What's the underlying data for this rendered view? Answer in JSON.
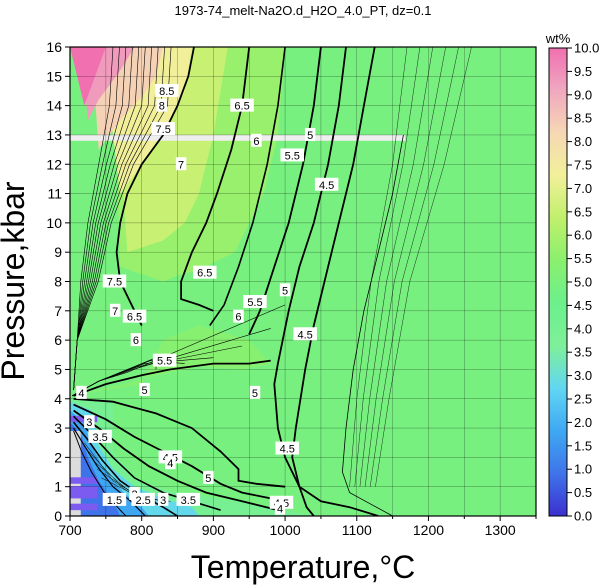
{
  "chart_data": {
    "type": "heatmap",
    "title": "1973-74_melt-Na2O.d_H2O_4.0_PT, dz=0.1",
    "xlabel": "Temperature,°C",
    "ylabel": "Pressure,kbar",
    "xlim": [
      700,
      1350
    ],
    "ylim": [
      0,
      16
    ],
    "xticks": [
      700,
      800,
      900,
      1000,
      1100,
      1200,
      1300
    ],
    "yticks": [
      0,
      1,
      2,
      3,
      4,
      5,
      6,
      7,
      8,
      9,
      10,
      11,
      12,
      13,
      14,
      15,
      16
    ],
    "grid": true,
    "colorbar": {
      "title": "wt%",
      "min": 0.0,
      "max": 10.0,
      "ticks": [
        "0.0",
        "0.5",
        "1.0",
        "1.5",
        "2.0",
        "2.5",
        "3.0",
        "3.5",
        "4.0",
        "4.5",
        "5.0",
        "5.5",
        "6.0",
        "6.5",
        "7.0",
        "7.5",
        "8.0",
        "8.5",
        "9.0",
        "9.5",
        "10.0"
      ],
      "colors": [
        "#3c2fd0",
        "#3f74ea",
        "#3fa8f2",
        "#62d6f2",
        "#7ef09a",
        "#6cf08c",
        "#8af06e",
        "#c0f06c",
        "#f2f09a",
        "#f6d8b4",
        "#f0a8c0",
        "#f070b0"
      ]
    },
    "background_value": 4.9,
    "contour_labels": [
      {
        "text": "8.5",
        "x": 835,
        "y": 14.5
      },
      {
        "text": "8",
        "x": 828,
        "y": 14.0
      },
      {
        "text": "7.5",
        "x": 830,
        "y": 13.2
      },
      {
        "text": "7",
        "x": 855,
        "y": 12.0
      },
      {
        "text": "6.5",
        "x": 940,
        "y": 14.0
      },
      {
        "text": "6",
        "x": 960,
        "y": 12.8
      },
      {
        "text": "5.5",
        "x": 1010,
        "y": 12.3
      },
      {
        "text": "5",
        "x": 1035,
        "y": 13.0
      },
      {
        "text": "4.5",
        "x": 1058,
        "y": 11.3
      },
      {
        "text": "6.5",
        "x": 888,
        "y": 8.3
      },
      {
        "text": "7.5",
        "x": 762,
        "y": 8.0
      },
      {
        "text": "7",
        "x": 763,
        "y": 7.0
      },
      {
        "text": "6.5",
        "x": 790,
        "y": 6.8
      },
      {
        "text": "6",
        "x": 792,
        "y": 6.0
      },
      {
        "text": "6",
        "x": 935,
        "y": 6.8
      },
      {
        "text": "5.5",
        "x": 958,
        "y": 7.3
      },
      {
        "text": "5",
        "x": 1000,
        "y": 7.7
      },
      {
        "text": "4.5",
        "x": 1028,
        "y": 6.2
      },
      {
        "text": "5.5",
        "x": 832,
        "y": 5.3
      },
      {
        "text": "5",
        "x": 804,
        "y": 4.3
      },
      {
        "text": "5",
        "x": 958,
        "y": 4.2
      },
      {
        "text": "4.5",
        "x": 1003,
        "y": 2.3
      },
      {
        "text": "4",
        "x": 716,
        "y": 4.2
      },
      {
        "text": "3",
        "x": 727,
        "y": 3.2
      },
      {
        "text": "3.5",
        "x": 742,
        "y": 2.7
      },
      {
        "text": "4.5",
        "x": 840,
        "y": 2.0
      },
      {
        "text": "4",
        "x": 840,
        "y": 1.8
      },
      {
        "text": "5",
        "x": 893,
        "y": 1.3
      },
      {
        "text": "1.5",
        "x": 762,
        "y": 0.55
      },
      {
        "text": "2",
        "x": 790,
        "y": 0.75
      },
      {
        "text": "2.5",
        "x": 802,
        "y": 0.55
      },
      {
        "text": "3",
        "x": 830,
        "y": 0.55
      },
      {
        "text": "3.5",
        "x": 865,
        "y": 0.55
      },
      {
        "text": "4.5",
        "x": 995,
        "y": 0.45
      },
      {
        "text": "4",
        "x": 993,
        "y": 0.25
      }
    ]
  }
}
